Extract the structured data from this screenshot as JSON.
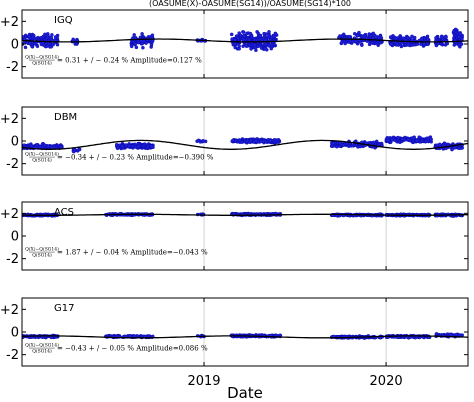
{
  "figure": {
    "title": "(OASUME(X)-OASUME(SG14))/OASUME(SG14)*100",
    "xlabel": "Date",
    "x_ticks": [
      {
        "label": "2019",
        "value": 2019.0
      },
      {
        "label": "2020",
        "value": 2020.0
      }
    ],
    "xlim": [
      2018.0,
      2020.45
    ]
  },
  "chart_data": [
    {
      "type": "scatter",
      "panel": "IGQ",
      "ylim": [
        -3,
        3
      ],
      "y_ticks": [
        {
          "label": "+2",
          "value": 2
        },
        {
          "label": "0",
          "value": 0
        },
        {
          "label": "-2",
          "value": -2
        }
      ],
      "annotation": {
        "frac_num": "Q(X)−Q(SG14)",
        "frac_den": "Q(SG14)",
        "text": "= 0.31 + / − 0.24 % Amplitude=0.127 %"
      },
      "fit": {
        "mean": 0.31,
        "amplitude": 0.127,
        "phase_peak": 2018.75
      },
      "clusters": [
        {
          "start": 2018.0,
          "end": 2018.2,
          "center": 0.3,
          "spread": 1.6,
          "n": 130
        },
        {
          "start": 2018.27,
          "end": 2018.31,
          "center": 0.2,
          "spread": 0.7,
          "n": 14
        },
        {
          "start": 2018.6,
          "end": 2018.72,
          "center": 0.3,
          "spread": 1.5,
          "n": 85
        },
        {
          "start": 2018.96,
          "end": 2019.01,
          "center": 0.3,
          "spread": 0.3,
          "n": 10
        },
        {
          "start": 2019.15,
          "end": 2019.4,
          "center": 0.3,
          "spread": 2.0,
          "n": 230
        },
        {
          "start": 2019.74,
          "end": 2019.98,
          "center": 0.4,
          "spread": 1.4,
          "n": 150
        },
        {
          "start": 2020.02,
          "end": 2020.24,
          "center": 0.2,
          "spread": 1.4,
          "n": 140
        },
        {
          "start": 2020.27,
          "end": 2020.34,
          "center": 0.3,
          "spread": 1.4,
          "n": 40
        },
        {
          "start": 2020.37,
          "end": 2020.42,
          "center": 0.5,
          "spread": 2.2,
          "n": 55
        }
      ]
    },
    {
      "type": "scatter",
      "panel": "DBM",
      "ylim": [
        -3,
        3
      ],
      "y_ticks": [
        {
          "label": "+2",
          "value": 2
        },
        {
          "label": "0",
          "value": 0
        },
        {
          "label": "-2",
          "value": -2
        }
      ],
      "annotation": {
        "frac_num": "Q(X)−Q(SG14)",
        "frac_den": "Q(SG14)",
        "text": "= −0.34 + / − 0.23 % Amplitude=−0.390 %"
      },
      "fit": {
        "mean": -0.34,
        "amplitude": -0.39,
        "phase_peak": 2019.15
      },
      "clusters": [
        {
          "start": 2018.0,
          "end": 2018.22,
          "center": -0.5,
          "spread": 0.6,
          "n": 110
        },
        {
          "start": 2018.28,
          "end": 2018.32,
          "center": -0.8,
          "spread": 0.4,
          "n": 10
        },
        {
          "start": 2018.52,
          "end": 2018.72,
          "center": -0.45,
          "spread": 0.6,
          "n": 120
        },
        {
          "start": 2018.96,
          "end": 2019.01,
          "center": 0.0,
          "spread": 0.3,
          "n": 8
        },
        {
          "start": 2019.15,
          "end": 2019.42,
          "center": 0.0,
          "spread": 0.5,
          "n": 160
        },
        {
          "start": 2019.7,
          "end": 2019.98,
          "center": -0.3,
          "spread": 0.7,
          "n": 150
        },
        {
          "start": 2020.0,
          "end": 2020.25,
          "center": 0.1,
          "spread": 0.6,
          "n": 150
        },
        {
          "start": 2020.27,
          "end": 2020.42,
          "center": -0.45,
          "spread": 0.7,
          "n": 80
        }
      ]
    },
    {
      "type": "scatter",
      "panel": "ACS",
      "ylim": [
        -3,
        3
      ],
      "y_ticks": [
        {
          "label": "+2",
          "value": 2
        },
        {
          "label": "0",
          "value": 0
        },
        {
          "label": "-2",
          "value": -2
        }
      ],
      "annotation": {
        "frac_num": "Q(X)−Q(SG14)",
        "frac_den": "Q(SG14)",
        "text": "= 1.87 + / − 0.04 % Amplitude=−0.043 %"
      },
      "fit": {
        "mean": 1.87,
        "amplitude": -0.043,
        "phase_peak": 2019.15
      },
      "clusters": [
        {
          "start": 2018.0,
          "end": 2018.2,
          "center": 1.85,
          "spread": 0.2,
          "n": 90
        },
        {
          "start": 2018.46,
          "end": 2018.72,
          "center": 1.9,
          "spread": 0.2,
          "n": 110
        },
        {
          "start": 2018.96,
          "end": 2019.01,
          "center": 1.9,
          "spread": 0.15,
          "n": 8
        },
        {
          "start": 2019.15,
          "end": 2019.42,
          "center": 1.9,
          "spread": 0.2,
          "n": 140
        },
        {
          "start": 2019.7,
          "end": 2019.98,
          "center": 1.85,
          "spread": 0.2,
          "n": 120
        },
        {
          "start": 2020.0,
          "end": 2020.24,
          "center": 1.85,
          "spread": 0.2,
          "n": 120
        },
        {
          "start": 2020.27,
          "end": 2020.42,
          "center": 1.85,
          "spread": 0.25,
          "n": 70
        }
      ]
    },
    {
      "type": "scatter",
      "panel": "G17",
      "ylim": [
        -3,
        3
      ],
      "y_ticks": [
        {
          "label": "+2",
          "value": 2
        },
        {
          "label": "0",
          "value": 0
        },
        {
          "label": "-2",
          "value": -2
        }
      ],
      "annotation": {
        "frac_num": "Q(X)−Q(SG14)",
        "frac_den": "Q(SG14)",
        "text": "= −0.43 + / − 0.05 % Amplitude=0.086 %"
      },
      "fit": {
        "mean": -0.43,
        "amplitude": 0.086,
        "phase_peak": 2019.15
      },
      "clusters": [
        {
          "start": 2018.0,
          "end": 2018.2,
          "center": -0.4,
          "spread": 0.25,
          "n": 90
        },
        {
          "start": 2018.46,
          "end": 2018.72,
          "center": -0.4,
          "spread": 0.25,
          "n": 110
        },
        {
          "start": 2018.96,
          "end": 2019.01,
          "center": -0.35,
          "spread": 0.15,
          "n": 8
        },
        {
          "start": 2019.15,
          "end": 2019.42,
          "center": -0.35,
          "spread": 0.25,
          "n": 140
        },
        {
          "start": 2019.7,
          "end": 2019.98,
          "center": -0.45,
          "spread": 0.25,
          "n": 120
        },
        {
          "start": 2020.0,
          "end": 2020.24,
          "center": -0.4,
          "spread": 0.25,
          "n": 120
        },
        {
          "start": 2020.27,
          "end": 2020.42,
          "center": -0.3,
          "spread": 0.3,
          "n": 70
        }
      ]
    }
  ],
  "colors": {
    "points": "#1f1fd6",
    "points_edge": "#0000a0",
    "fit_line": "#000000",
    "axes": "#000000",
    "grid": "#c8c8c8"
  }
}
